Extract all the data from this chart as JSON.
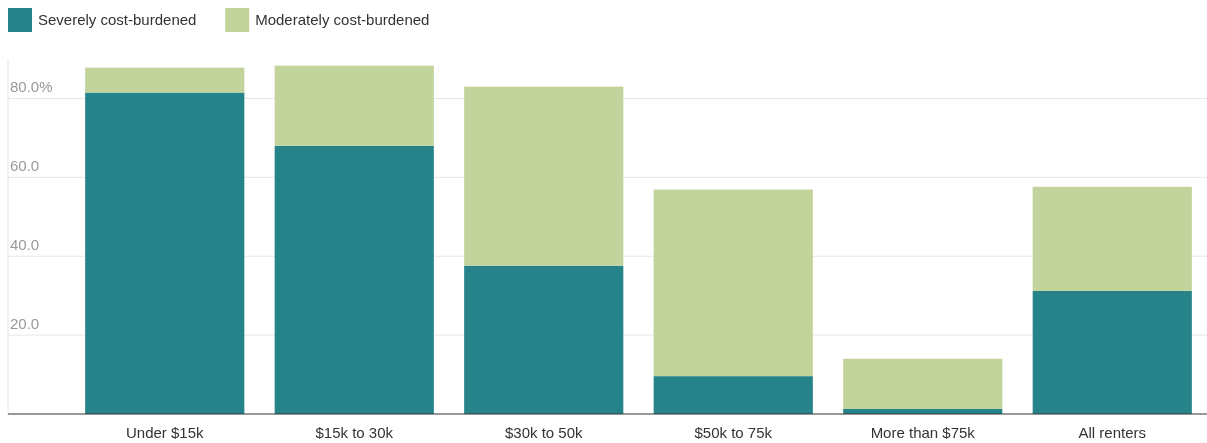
{
  "chart_data": {
    "type": "bar",
    "stacked": true,
    "categories": [
      "Under $15k",
      "$15k to 30k",
      "$30k to 50k",
      "$50k to 75k",
      "More than $75k",
      "All renters"
    ],
    "series": [
      {
        "name": "Severely cost-burdened",
        "color": "#26838a",
        "values": [
          81.5,
          68.0,
          37.6,
          9.6,
          1.3,
          31.2
        ]
      },
      {
        "name": "Moderately cost-burdened",
        "color": "#c2d39c",
        "values": [
          6.3,
          20.3,
          45.4,
          47.3,
          12.7,
          26.4
        ]
      }
    ],
    "ylim": [
      0,
      90
    ],
    "yticks": [
      {
        "value": 20,
        "label": "20.0"
      },
      {
        "value": 40,
        "label": "40.0"
      },
      {
        "value": 60,
        "label": "60.0"
      },
      {
        "value": 80,
        "label": "80.0%"
      }
    ],
    "grid": "y",
    "legend": "top left"
  }
}
